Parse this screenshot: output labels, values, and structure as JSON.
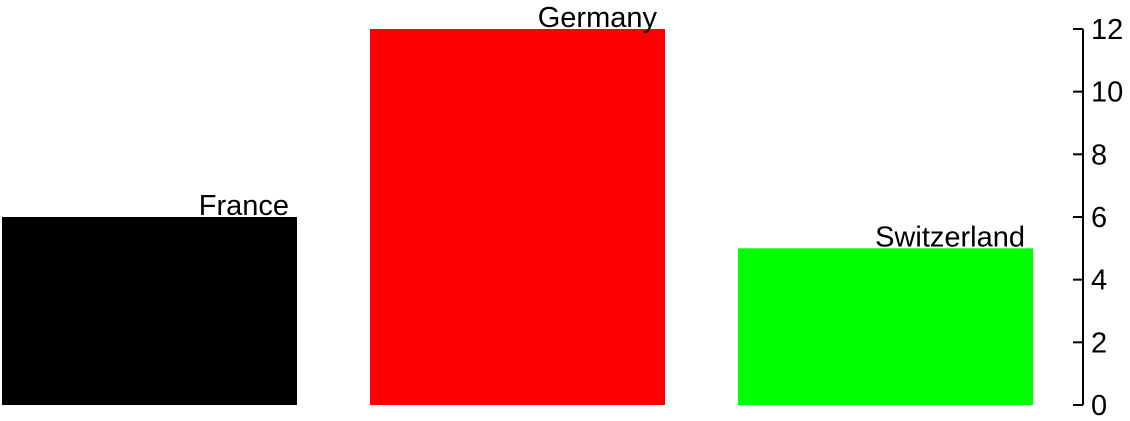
{
  "chart_data": {
    "type": "bar",
    "categories": [
      "France",
      "Germany",
      "Switzerland"
    ],
    "values": [
      6,
      12,
      5
    ],
    "colors": [
      "#000000",
      "#ff0000",
      "#00ff00"
    ],
    "ylim": [
      0,
      12
    ],
    "yticks": [
      0,
      2,
      4,
      6,
      8,
      10,
      12
    ],
    "yaxis_position": "right",
    "grid": false,
    "legend": "none",
    "title": "",
    "xlabel": "",
    "ylabel": ""
  }
}
